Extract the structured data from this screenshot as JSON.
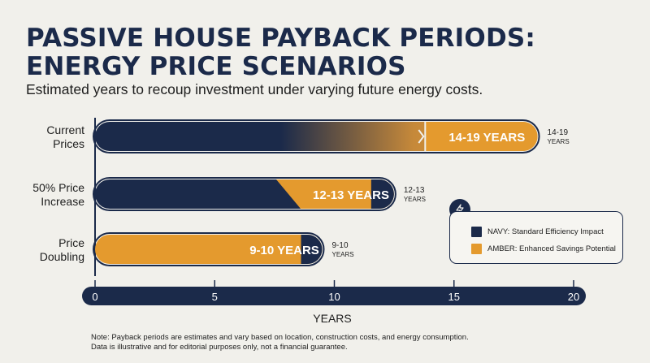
{
  "title_lines": [
    "PASSIVE HOUSE PAYBACK PERIODS:",
    "ENERGY PRICE SCENARIOS"
  ],
  "subtitle": "Estimated years to recoup investment under varying future energy costs.",
  "colors": {
    "navy": "#1b2a4a",
    "amber": "#e49a2e",
    "background": "#f1f0eb"
  },
  "chart_data": {
    "type": "bar",
    "orientation": "horizontal",
    "categories": [
      {
        "label": [
          "Current",
          "Prices"
        ],
        "range": [
          14,
          19
        ],
        "bar_label": "14-19 YEARS",
        "side_label": [
          "14-19",
          "YEARS"
        ]
      },
      {
        "label": [
          "50% Price",
          "Increase"
        ],
        "range": [
          12,
          13
        ],
        "bar_label": "12-13 YEARS",
        "side_label": [
          "12-13",
          "YEARS"
        ]
      },
      {
        "label": [
          "Price",
          "Doubling"
        ],
        "range": [
          9,
          10
        ],
        "bar_label": "9-10 YEARS",
        "side_label": [
          "9-10",
          "YEARS"
        ]
      }
    ],
    "series": [
      {
        "name": "NAVY: Standard Efficiency Impact",
        "color": "#1b2a4a"
      },
      {
        "name": "AMBER: Enhanced Savings Potential",
        "color": "#e49a2e"
      }
    ],
    "xlabel": "YEARS",
    "xlim": [
      0,
      20
    ],
    "xticks": [
      0,
      5,
      10,
      15,
      20
    ],
    "legend_position": "right"
  },
  "legend": {
    "items": [
      {
        "label": "NAVY: Standard Efficiency Impact",
        "color": "#1b2a4a"
      },
      {
        "label": "AMBER: Enhanced Savings Potential",
        "color": "#e49a2e"
      }
    ]
  },
  "note_lines": [
    "Note: Payback periods are estimates and vary based on location, construction costs, and energy consumption.",
    "Data is illustrative and for editorial purposes only, not a financial guarantee."
  ]
}
